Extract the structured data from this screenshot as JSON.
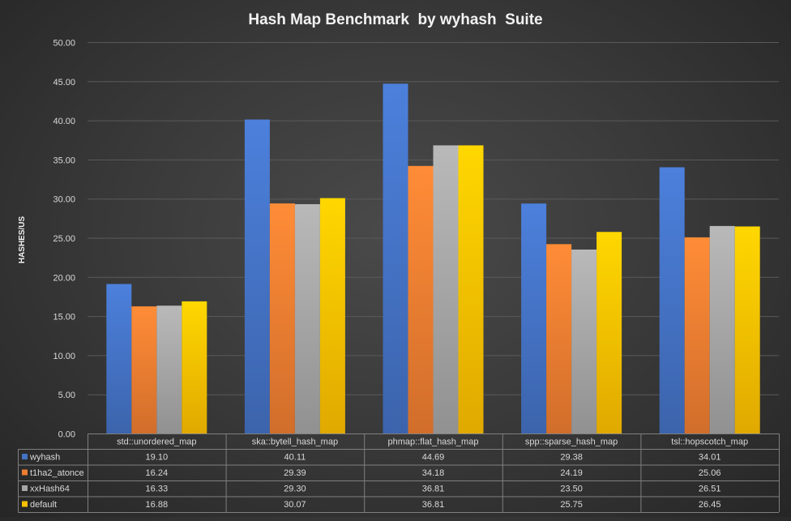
{
  "chart_data": {
    "type": "bar",
    "title": "Hash Map Benchmark  by wyhash  Suite",
    "ylabel": "HASHES/US",
    "xlabel": "",
    "ylim": [
      0,
      50
    ],
    "ytick_step": 5,
    "ytick_labels": [
      "0.00",
      "5.00",
      "10.00",
      "15.00",
      "20.00",
      "25.00",
      "30.00",
      "35.00",
      "40.00",
      "45.00",
      "50.00"
    ],
    "grid": true,
    "legend": "data-table",
    "categories": [
      "std::unordered_map",
      "ska::bytell_hash_map",
      "phmap::flat_hash_map",
      "spp::sparse_hash_map",
      "tsl::hopscotch_map"
    ],
    "series": [
      {
        "name": "wyhash",
        "color": "#4472c4",
        "values": [
          19.1,
          40.11,
          44.69,
          29.38,
          34.01
        ],
        "labels": [
          "19.10",
          "40.11",
          "44.69",
          "29.38",
          "34.01"
        ]
      },
      {
        "name": "t1ha2_atonce",
        "color": "#ed7d31",
        "values": [
          16.24,
          29.39,
          34.18,
          24.19,
          25.06
        ],
        "labels": [
          "16.24",
          "29.39",
          "34.18",
          "24.19",
          "25.06"
        ]
      },
      {
        "name": "xxHash64",
        "color": "#a5a5a5",
        "values": [
          16.33,
          29.3,
          36.81,
          23.5,
          26.51
        ],
        "labels": [
          "16.33",
          "29.30",
          "36.81",
          "23.50",
          "26.51"
        ]
      },
      {
        "name": "default",
        "color": "#ffc000",
        "values": [
          16.88,
          30.07,
          36.81,
          25.75,
          26.45
        ],
        "labels": [
          "16.88",
          "30.07",
          "36.81",
          "25.75",
          "26.45"
        ]
      }
    ]
  }
}
